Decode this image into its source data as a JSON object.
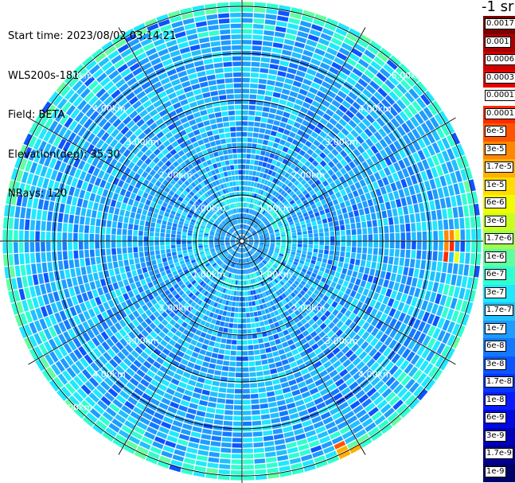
{
  "info": {
    "start_time": "Start time: 2023/08/02 03:14:21",
    "instrument": "WLS200s-181",
    "field": "Field: BETA",
    "elevation": "Elevation(deg): 35.30",
    "nrays": "NRays: 120"
  },
  "unit_label": "-1 sr",
  "range_ring_labels": [
    "1.00km",
    "2.00km",
    "3.00km",
    "4.00km",
    "5.00km"
  ],
  "colorbar": {
    "labels": [
      "0.0017",
      "0.001",
      "0.0006",
      "0.0003",
      "0.00017",
      "0.0001",
      "6e-5",
      "3e-5",
      "1.7e-5",
      "1e-5",
      "6e-6",
      "3e-6",
      "1.7e-6",
      "1e-6",
      "6e-7",
      "3e-7",
      "1.7e-7",
      "1e-7",
      "6e-8",
      "3e-8",
      "1.7e-8",
      "1e-8",
      "6e-9",
      "3e-9",
      "1.7e-9",
      "1e-9"
    ],
    "colors": [
      "#7a0000",
      "#a80000",
      "#cc0000",
      "#e60000",
      "#ffffff",
      "#ff2a00",
      "#ff5500",
      "#ff8800",
      "#ffb000",
      "#ffdd00",
      "#f0ff00",
      "#c8ff20",
      "#9cff50",
      "#60ffa0",
      "#30ffd0",
      "#20e8ff",
      "#20c0ff",
      "#1e9cff",
      "#1478ff",
      "#0c54ff",
      "#0636ff",
      "#0a1cff",
      "#0008e0",
      "#0000b8",
      "#000090",
      "#00006a"
    ]
  },
  "colors": {
    "background": "#ffffff",
    "grid_lines": "#000000",
    "ring_label": "#ffffff"
  }
}
